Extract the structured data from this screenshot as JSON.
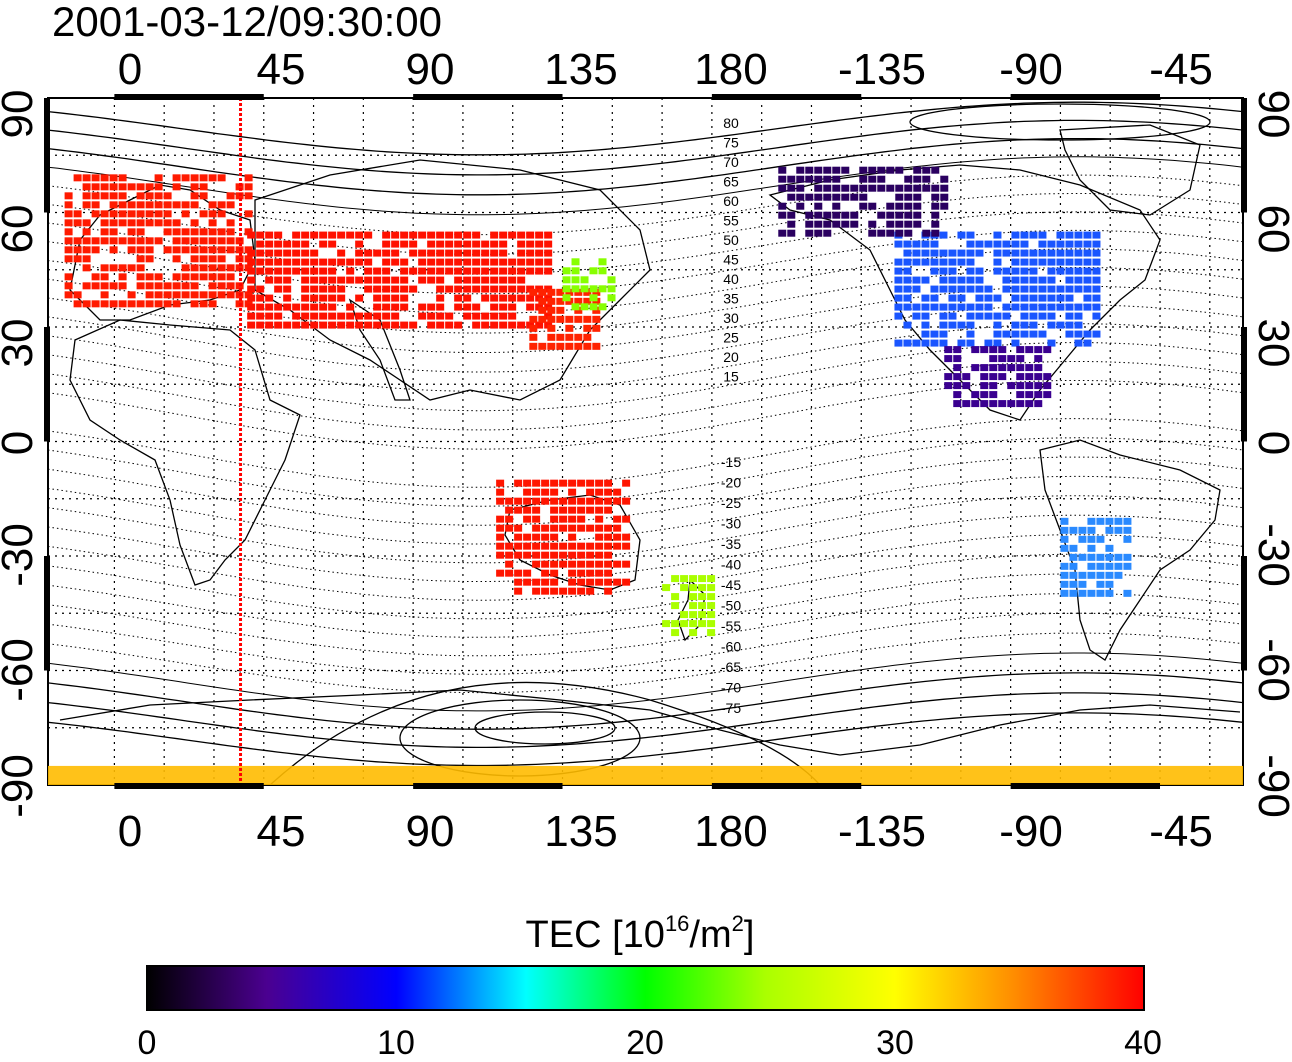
{
  "title": "2001-03-12/09:30:00",
  "map": {
    "x_ticks_top": [
      "0",
      "45",
      "90",
      "135",
      "180",
      "-135",
      "-90",
      "-45"
    ],
    "x_ticks_bottom": [
      "0",
      "45",
      "90",
      "135",
      "180",
      "-135",
      "-90",
      "-45"
    ],
    "y_ticks_left": [
      "90",
      "60",
      "30",
      "0",
      "-30",
      "-60",
      "-90"
    ],
    "y_ticks_right": [
      "90",
      "60",
      "30",
      "0",
      "-30",
      "-60",
      "-90"
    ],
    "contour_labels_north": [
      "80",
      "75",
      "70",
      "65",
      "60",
      "55",
      "50",
      "45",
      "40",
      "35",
      "30",
      "25",
      "20",
      "15"
    ],
    "contour_labels_south": [
      "-15",
      "-20",
      "-25",
      "-30",
      "-35",
      "-40",
      "-45",
      "-50",
      "-55",
      "-60",
      "-65",
      "-70",
      "-75"
    ],
    "marker_line_longitude": 38,
    "marker_color": "#ff0000"
  },
  "colorbar": {
    "label_prefix": "TEC  [10",
    "label_exp": "16",
    "label_mid": "/m",
    "label_exp2": "2",
    "label_suffix": "]",
    "ticks": [
      "0",
      "10",
      "20",
      "30",
      "40"
    ],
    "range": [
      0,
      40
    ]
  },
  "chart_data": {
    "type": "heatmap",
    "title": "2001-03-12/09:30:00",
    "xlim": [
      -20,
      340
    ],
    "ylim": [
      -90,
      90
    ],
    "grid": true,
    "colorbar_label": "TEC [10^16/m^2]",
    "colorbar_range": [
      0,
      40
    ],
    "regions": [
      {
        "lon": [
          -15,
          40
        ],
        "lat": [
          35,
          70
        ],
        "tec": 38
      },
      {
        "lon": [
          40,
          130
        ],
        "lat": [
          30,
          55
        ],
        "tec": 39
      },
      {
        "lon": [
          125,
          145
        ],
        "lat": [
          25,
          40
        ],
        "tec": 38
      },
      {
        "lon": [
          135,
          150
        ],
        "lat": [
          35,
          48
        ],
        "tec": 24
      },
      {
        "lon": [
          -125,
          -65
        ],
        "lat": [
          25,
          55
        ],
        "tec": 10
      },
      {
        "lon": [
          -160,
          -110
        ],
        "lat": [
          55,
          72
        ],
        "tec": 3
      },
      {
        "lon": [
          -110,
          -80
        ],
        "lat": [
          10,
          25
        ],
        "tec": 6
      },
      {
        "lon": [
          -75,
          -55
        ],
        "lat": [
          -40,
          -20
        ],
        "tec": 12
      },
      {
        "lon": [
          165,
          180
        ],
        "lat": [
          -50,
          -35
        ],
        "tec": 26
      },
      {
        "lon": [
          115,
          155
        ],
        "lat": [
          -40,
          -10
        ],
        "tec": 39
      },
      {
        "lon": [
          -180,
          180
        ],
        "lat": [
          -90,
          -85
        ],
        "tec": 30
      }
    ]
  },
  "colors": {
    "c0": "#000000",
    "c5": "#4b0090",
    "c10": "#0000ff",
    "c15": "#00ffff",
    "c20": "#00ff00",
    "c30": "#ffff00",
    "c35": "#ff8c00",
    "c40": "#ff0000"
  }
}
